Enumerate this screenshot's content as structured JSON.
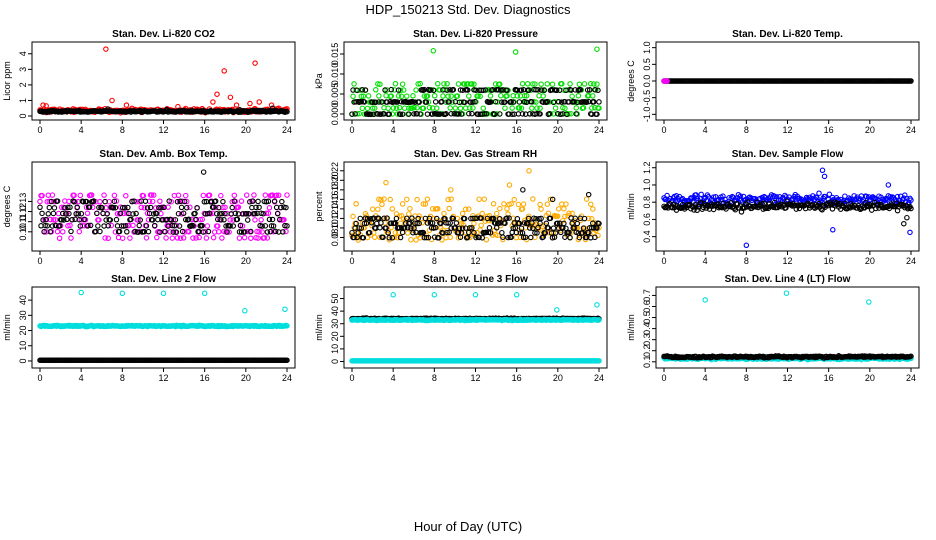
{
  "figure": {
    "title": "HDP_150213  Std. Dev. Diagnostics",
    "xlabel": "Hour of Day (UTC)"
  },
  "chart_data": [
    {
      "type": "scatter",
      "title": "Stan. Dev. Li-820 CO2",
      "ylabel": "Licor ppm",
      "xlim": [
        0,
        24
      ],
      "ylim": [
        0,
        4.5
      ],
      "xticks": [
        "0",
        "4",
        "8",
        "12",
        "16",
        "20",
        "24"
      ],
      "yticks": [
        {
          "v": 0,
          "label": "0"
        },
        {
          "v": 1,
          "label": "1"
        },
        {
          "v": 2,
          "label": "2"
        },
        {
          "v": 3,
          "label": "3"
        },
        {
          "v": 4,
          "label": "4"
        }
      ],
      "series": [
        {
          "color": "#ff0000",
          "baseline": 0.35,
          "spread": 0.18,
          "outliers": [
            [
              0.3,
              0.7
            ],
            [
              0.6,
              0.65
            ],
            [
              6.4,
              4.3
            ],
            [
              7.0,
              1.0
            ],
            [
              8.4,
              0.7
            ],
            [
              13.4,
              0.6
            ],
            [
              16.8,
              0.9
            ],
            [
              17.2,
              1.4
            ],
            [
              17.9,
              2.9
            ],
            [
              18.5,
              1.2
            ],
            [
              19.1,
              0.7
            ],
            [
              20.4,
              0.8
            ],
            [
              20.9,
              3.4
            ],
            [
              21.3,
              0.9
            ],
            [
              22.5,
              0.7
            ],
            [
              23.2,
              0.5
            ]
          ]
        },
        {
          "color": "#000000",
          "baseline": 0.3,
          "spread": 0.08,
          "outliers": [
            [
              6.6,
              0.45
            ],
            [
              12.3,
              0.42
            ],
            [
              19.4,
              0.4
            ],
            [
              22.6,
              0.5
            ]
          ]
        }
      ]
    },
    {
      "type": "scatter",
      "title": "Stan. Dev. Li-820 Pressure",
      "ylabel": "kPa",
      "xlim": [
        0,
        24
      ],
      "ylim": [
        -0.0005,
        0.017
      ],
      "xticks": [
        "0",
        "4",
        "8",
        "12",
        "16",
        "20",
        "24"
      ],
      "yticks": [
        {
          "v": 0,
          "label": "0.000"
        },
        {
          "v": 0.005,
          "label": "0.005"
        },
        {
          "v": 0.01,
          "label": "0.010"
        },
        {
          "v": 0.015,
          "label": "0.015"
        }
      ],
      "series": [
        {
          "color": "#00dd00",
          "levels": [
            0,
            0.0015,
            0.003,
            0.0045,
            0.006,
            0.0075
          ],
          "outliers": [
            [
              7.9,
              0.0158
            ],
            [
              15.9,
              0.0155
            ],
            [
              23.8,
              0.0162
            ]
          ]
        },
        {
          "color": "#000000",
          "levels": [
            0,
            0.003,
            0.006
          ],
          "outliers": [
            [
              23.4,
              0.003
            ]
          ]
        }
      ]
    },
    {
      "type": "scatter",
      "title": "Stan. Dev. Li-820 Temp.",
      "ylabel": "degrees C",
      "xlim": [
        0,
        24
      ],
      "ylim": [
        -1.05,
        1.05
      ],
      "xticks": [
        "0",
        "4",
        "8",
        "12",
        "16",
        "20",
        "24"
      ],
      "yticks": [
        {
          "v": -1,
          "label": "-1.0"
        },
        {
          "v": -0.5,
          "label": "-0.5"
        },
        {
          "v": 0,
          "label": "0.0"
        },
        {
          "v": 0.5,
          "label": "0.5"
        },
        {
          "v": 1,
          "label": "1.0"
        }
      ],
      "series": [
        {
          "color": "#000000",
          "constant": 0
        },
        {
          "color": "#ff00ff",
          "constant": 0,
          "points_x": [
            0,
            0.1,
            0.2,
            0.3
          ]
        }
      ]
    },
    {
      "type": "scatter",
      "title": "Stan. Dev. Amb. Box Temp.",
      "ylabel": "degrees C",
      "xlim": [
        0,
        24
      ],
      "ylim": [
        0.085,
        0.165
      ],
      "xticks": [
        "0",
        "4",
        "8",
        "12",
        "16",
        "20",
        "24"
      ],
      "yticks": [
        {
          "v": 0.1,
          "label": "0.10"
        },
        {
          "v": 0.11,
          "label": "0.11"
        },
        {
          "v": 0.12,
          "label": "0.12"
        },
        {
          "v": 0.13,
          "label": "0.13"
        }
      ],
      "series": [
        {
          "color": "#ff00ff",
          "levels": [
            0.094,
            0.1,
            0.106,
            0.112,
            0.118,
            0.124,
            0.13,
            0.136
          ],
          "outliers": []
        },
        {
          "color": "#000000",
          "levels": [
            0.1,
            0.106,
            0.112,
            0.118,
            0.124,
            0.13
          ],
          "outliers": [
            [
              15.9,
              0.159
            ]
          ]
        }
      ]
    },
    {
      "type": "scatter",
      "title": "Stan. Dev. Gas Stream RH",
      "ylabel": "percent",
      "xlim": [
        0,
        24
      ],
      "ylim": [
        0.06,
        0.23
      ],
      "xticks": [
        "0",
        "4",
        "8",
        "12",
        "16",
        "20",
        "24"
      ],
      "yticks": [
        {
          "v": 0.08,
          "label": "0.08"
        },
        {
          "v": 0.1,
          "label": "0.10"
        },
        {
          "v": 0.12,
          "label": "0.12"
        },
        {
          "v": 0.14,
          "label": "0.14"
        },
        {
          "v": 0.16,
          "label": "0.16"
        },
        {
          "v": 0.18,
          "label": "0.18"
        },
        {
          "v": 0.2,
          "label": "0.20"
        },
        {
          "v": 0.22,
          "label": "0.22"
        }
      ],
      "series": [
        {
          "color": "#ffaa00",
          "levels": [
            0.075,
            0.08,
            0.085,
            0.09,
            0.095,
            0.1,
            0.105,
            0.11,
            0.115,
            0.12,
            0.125,
            0.13,
            0.14,
            0.15,
            0.16
          ],
          "outliers": [
            [
              17.2,
              0.22
            ],
            [
              3.3,
              0.195
            ],
            [
              15.3,
              0.19
            ],
            [
              9.6,
              0.18
            ]
          ]
        },
        {
          "color": "#000000",
          "levels": [
            0.08,
            0.09,
            0.1,
            0.11,
            0.12
          ],
          "outliers": [
            [
              16.6,
              0.18
            ],
            [
              23.0,
              0.17
            ],
            [
              19.5,
              0.16
            ]
          ]
        }
      ]
    },
    {
      "type": "scatter",
      "title": "Stan. Dev. Sample Flow",
      "ylabel": "ml/min",
      "xlim": [
        0,
        24
      ],
      "ylim": [
        0.28,
        1.22
      ],
      "xticks": [
        "0",
        "4",
        "8",
        "12",
        "16",
        "20",
        "24"
      ],
      "yticks": [
        {
          "v": 0.4,
          "label": "0.4"
        },
        {
          "v": 0.6,
          "label": "0.6"
        },
        {
          "v": 0.8,
          "label": "0.8"
        },
        {
          "v": 1.0,
          "label": "1.0"
        },
        {
          "v": 1.2,
          "label": "1.2"
        }
      ],
      "series": [
        {
          "color": "#0000ff",
          "baseline": 0.83,
          "spread": 0.09,
          "outliers": [
            [
              15.4,
              1.17
            ],
            [
              15.6,
              1.1
            ],
            [
              21.8,
              1.0
            ],
            [
              23.9,
              0.45
            ],
            [
              8.0,
              0.3
            ],
            [
              16.4,
              0.48
            ]
          ]
        },
        {
          "color": "#000000",
          "baseline": 0.75,
          "spread": 0.07,
          "outliers": [
            [
              23.3,
              0.55
            ],
            [
              23.6,
              0.62
            ]
          ]
        }
      ]
    },
    {
      "type": "scatter",
      "title": "Stan. Dev. Line 2 Flow",
      "ylabel": "ml/min",
      "xlim": [
        0,
        24
      ],
      "ylim": [
        -2,
        46
      ],
      "xticks": [
        "0",
        "4",
        "8",
        "12",
        "16",
        "20",
        "24"
      ],
      "yticks": [
        {
          "v": 0,
          "label": "0"
        },
        {
          "v": 10,
          "label": "10"
        },
        {
          "v": 20,
          "label": "20"
        },
        {
          "v": 30,
          "label": "30"
        },
        {
          "v": 40,
          "label": "40"
        }
      ],
      "series": [
        {
          "color": "#00dddd",
          "baseline": 23,
          "spread": 0.6,
          "outliers": [
            [
              4.0,
              45
            ],
            [
              8.0,
              44.5
            ],
            [
              12.0,
              44.5
            ],
            [
              16.0,
              44.5
            ],
            [
              19.9,
              33
            ],
            [
              23.8,
              34
            ]
          ]
        },
        {
          "color": "#000000",
          "constant": 0.5
        }
      ]
    },
    {
      "type": "scatter",
      "title": "Stan. Dev. Line 3 Flow",
      "ylabel": "ml/min",
      "xlim": [
        0,
        24
      ],
      "ylim": [
        -2,
        56
      ],
      "xticks": [
        "0",
        "4",
        "8",
        "12",
        "16",
        "20",
        "24"
      ],
      "yticks": [
        {
          "v": 0,
          "label": "0"
        },
        {
          "v": 10,
          "label": "10"
        },
        {
          "v": 20,
          "label": "20"
        },
        {
          "v": 30,
          "label": "30"
        },
        {
          "v": 40,
          "label": "40"
        },
        {
          "v": 50,
          "label": "50"
        }
      ],
      "series": [
        {
          "color": "#000000",
          "baseline": 34,
          "spread": 0.7,
          "outliers": []
        },
        {
          "color": "#00dddd",
          "baseline": 33,
          "spread": 0.6,
          "outliers": [
            [
              4.0,
              53
            ],
            [
              8.0,
              53
            ],
            [
              12.0,
              53
            ],
            [
              16.0,
              53
            ],
            [
              19.9,
              41
            ],
            [
              23.8,
              45
            ]
          ]
        },
        {
          "color": "#00dddd",
          "constant": 0.5
        }
      ]
    },
    {
      "type": "scatter",
      "title": "Stan. Dev. Line 4 (LT) Flow",
      "ylabel": "ml/min",
      "xlim": [
        0,
        24
      ],
      "ylim": [
        0.08,
        0.74
      ],
      "xticks": [
        "0",
        "4",
        "8",
        "12",
        "16",
        "20",
        "24"
      ],
      "yticks": [
        {
          "v": 0.1,
          "label": "0.1"
        },
        {
          "v": 0.2,
          "label": "0.2"
        },
        {
          "v": 0.3,
          "label": "0.3"
        },
        {
          "v": 0.4,
          "label": "0.4"
        },
        {
          "v": 0.5,
          "label": "0.5"
        },
        {
          "v": 0.6,
          "label": "0.6"
        },
        {
          "v": 0.7,
          "label": "0.7"
        }
      ],
      "series": [
        {
          "color": "#00dddd",
          "baseline": 0.13,
          "spread": 0.012,
          "outliers": [
            [
              4.0,
              0.66
            ],
            [
              11.9,
              0.72
            ],
            [
              19.9,
              0.64
            ]
          ]
        },
        {
          "color": "#000000",
          "baseline": 0.145,
          "spread": 0.012,
          "outliers": []
        }
      ]
    }
  ]
}
